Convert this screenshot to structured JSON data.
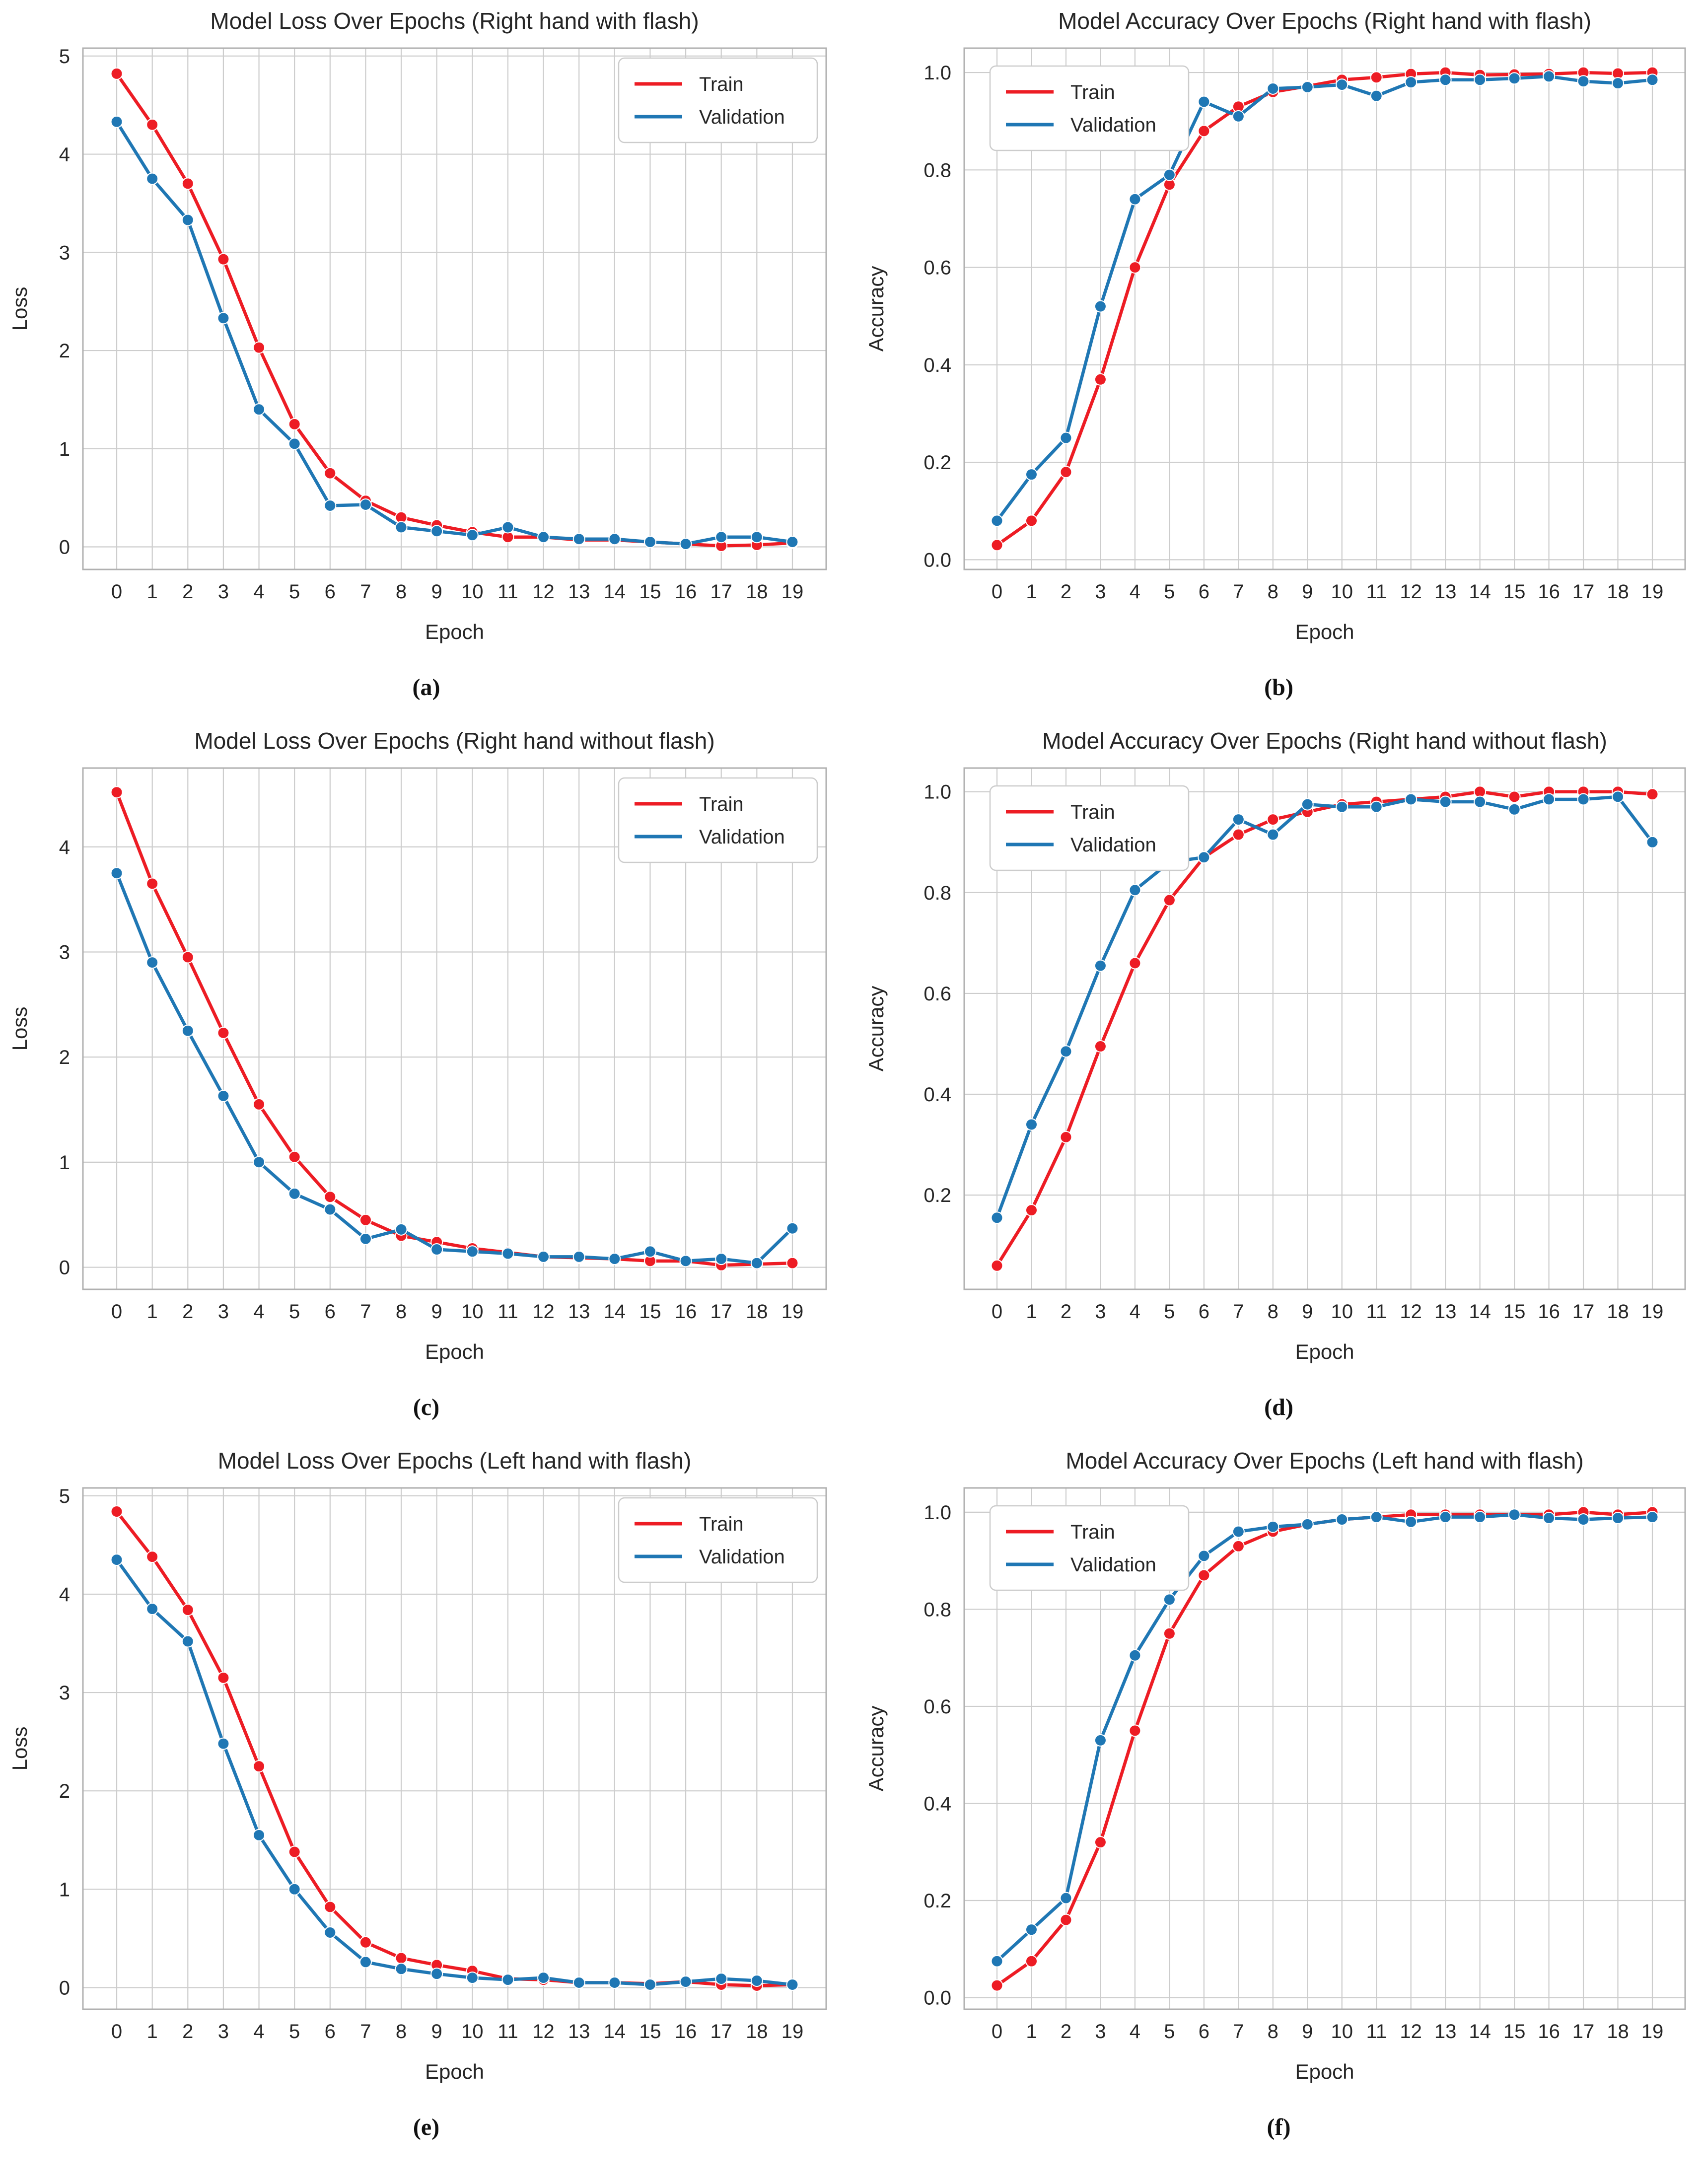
{
  "figure": {
    "background": "#ffffff",
    "grid_color": "#cdcdcd",
    "spine_color": "#b0b0b0",
    "text_color": "#262626",
    "legend_border_color": "#cccccc",
    "train_color": "#ed1c24",
    "validation_color": "#1f77b4"
  },
  "chart_data": {
    "type": "line",
    "epochs": [
      0,
      1,
      2,
      3,
      4,
      5,
      6,
      7,
      8,
      9,
      10,
      11,
      12,
      13,
      14,
      15,
      16,
      17,
      18,
      19
    ],
    "xlim": [
      -0.95,
      19.95
    ],
    "charts": [
      {
        "caption": "(a)",
        "title": "Model Loss Over Epochs (Right hand with flash)",
        "xlabel": "Epoch",
        "ylabel": "Loss",
        "yticks": [
          "0",
          "1",
          "2",
          "3",
          "4",
          "5"
        ],
        "ylim": [
          -0.23,
          5.08
        ],
        "legend_position": "top-right",
        "series": [
          {
            "name": "Train",
            "color": "#ed1c24",
            "values": [
              4.82,
              4.3,
              3.7,
              2.93,
              2.03,
              1.25,
              0.75,
              0.47,
              0.3,
              0.22,
              0.15,
              0.1,
              0.1,
              0.07,
              0.07,
              0.05,
              0.03,
              0.01,
              0.02,
              0.04
            ]
          },
          {
            "name": "Validation",
            "color": "#1f77b4",
            "values": [
              4.33,
              3.75,
              3.33,
              2.33,
              1.4,
              1.05,
              0.42,
              0.43,
              0.2,
              0.16,
              0.12,
              0.2,
              0.1,
              0.08,
              0.08,
              0.05,
              0.03,
              0.1,
              0.1,
              0.05
            ]
          }
        ]
      },
      {
        "caption": "(b)",
        "title": "Model Accuracy Over Epochs (Right hand with flash)",
        "xlabel": "Epoch",
        "ylabel": "Accuracy",
        "yticks": [
          "0.0",
          "0.2",
          "0.4",
          "0.6",
          "0.8",
          "1.0"
        ],
        "ylim": [
          -0.02,
          1.05
        ],
        "legend_position": "top-left",
        "series": [
          {
            "name": "Train",
            "color": "#ed1c24",
            "values": [
              0.03,
              0.08,
              0.18,
              0.37,
              0.6,
              0.77,
              0.88,
              0.93,
              0.96,
              0.972,
              0.985,
              0.99,
              0.997,
              1.0,
              0.995,
              0.996,
              0.997,
              1.0,
              0.998,
              1.0
            ]
          },
          {
            "name": "Validation",
            "color": "#1f77b4",
            "values": [
              0.08,
              0.175,
              0.25,
              0.52,
              0.74,
              0.79,
              0.94,
              0.91,
              0.967,
              0.97,
              0.975,
              0.952,
              0.98,
              0.985,
              0.985,
              0.988,
              0.992,
              0.982,
              0.978,
              0.985
            ]
          }
        ]
      },
      {
        "caption": "(c)",
        "title": "Model Loss Over Epochs (Right hand without flash)",
        "xlabel": "Epoch",
        "ylabel": "Loss",
        "yticks": [
          "0",
          "1",
          "2",
          "3",
          "4"
        ],
        "ylim": [
          -0.21,
          4.75
        ],
        "legend_position": "top-right",
        "series": [
          {
            "name": "Train",
            "color": "#ed1c24",
            "values": [
              4.52,
              3.65,
              2.95,
              2.23,
              1.55,
              1.05,
              0.67,
              0.45,
              0.3,
              0.24,
              0.18,
              0.14,
              0.1,
              0.09,
              0.08,
              0.06,
              0.06,
              0.02,
              0.03,
              0.04
            ]
          },
          {
            "name": "Validation",
            "color": "#1f77b4",
            "values": [
              3.75,
              2.9,
              2.25,
              1.63,
              1.0,
              0.7,
              0.55,
              0.27,
              0.36,
              0.17,
              0.15,
              0.13,
              0.1,
              0.1,
              0.08,
              0.15,
              0.06,
              0.08,
              0.04,
              0.37
            ]
          }
        ]
      },
      {
        "caption": "(d)",
        "title": "Model Accuracy Over Epochs (Right hand without flash)",
        "xlabel": "Epoch",
        "ylabel": "Accuracy",
        "yticks": [
          "0.2",
          "0.4",
          "0.6",
          "0.8",
          "1.0"
        ],
        "ylim": [
          0.013,
          1.047
        ],
        "legend_position": "top-left",
        "series": [
          {
            "name": "Train",
            "color": "#ed1c24",
            "values": [
              0.06,
              0.17,
              0.315,
              0.495,
              0.66,
              0.785,
              0.87,
              0.915,
              0.945,
              0.96,
              0.975,
              0.98,
              0.985,
              0.99,
              1.0,
              0.99,
              1.0,
              1.0,
              1.0,
              0.995
            ]
          },
          {
            "name": "Validation",
            "color": "#1f77b4",
            "values": [
              0.155,
              0.34,
              0.485,
              0.655,
              0.805,
              0.86,
              0.87,
              0.945,
              0.915,
              0.975,
              0.97,
              0.97,
              0.985,
              0.98,
              0.98,
              0.965,
              0.985,
              0.985,
              0.99,
              0.9
            ]
          }
        ]
      },
      {
        "caption": "(e)",
        "title": "Model Loss Over Epochs (Left hand with flash)",
        "xlabel": "Epoch",
        "ylabel": "Loss",
        "yticks": [
          "0",
          "1",
          "2",
          "3",
          "4",
          "5"
        ],
        "ylim": [
          -0.22,
          5.08
        ],
        "legend_position": "top-right",
        "series": [
          {
            "name": "Train",
            "color": "#ed1c24",
            "values": [
              4.84,
              4.38,
              3.84,
              3.15,
              2.25,
              1.38,
              0.82,
              0.46,
              0.3,
              0.23,
              0.17,
              0.09,
              0.08,
              0.05,
              0.05,
              0.04,
              0.06,
              0.03,
              0.02,
              0.03
            ]
          },
          {
            "name": "Validation",
            "color": "#1f77b4",
            "values": [
              4.35,
              3.85,
              3.52,
              2.48,
              1.55,
              1.0,
              0.56,
              0.26,
              0.19,
              0.14,
              0.1,
              0.08,
              0.1,
              0.05,
              0.05,
              0.03,
              0.06,
              0.09,
              0.07,
              0.03
            ]
          }
        ]
      },
      {
        "caption": "(f)",
        "title": "Model Accuracy Over Epochs (Left hand with flash)",
        "xlabel": "Epoch",
        "ylabel": "Accuracy",
        "yticks": [
          "0.0",
          "0.2",
          "0.4",
          "0.6",
          "0.8",
          "1.0"
        ],
        "ylim": [
          -0.024,
          1.05
        ],
        "legend_position": "top-left",
        "series": [
          {
            "name": "Train",
            "color": "#ed1c24",
            "values": [
              0.025,
              0.075,
              0.16,
              0.32,
              0.55,
              0.75,
              0.87,
              0.93,
              0.96,
              0.975,
              0.985,
              0.99,
              0.995,
              0.995,
              0.995,
              0.995,
              0.995,
              1.0,
              0.995,
              1.0
            ]
          },
          {
            "name": "Validation",
            "color": "#1f77b4",
            "values": [
              0.075,
              0.14,
              0.205,
              0.53,
              0.705,
              0.82,
              0.91,
              0.96,
              0.97,
              0.975,
              0.985,
              0.99,
              0.98,
              0.99,
              0.99,
              0.995,
              0.988,
              0.985,
              0.988,
              0.99
            ]
          }
        ]
      }
    ]
  }
}
